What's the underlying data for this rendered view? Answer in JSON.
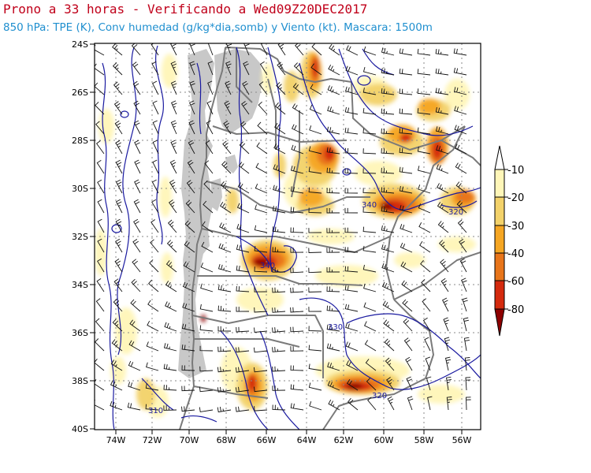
{
  "header": {
    "title": "Prono a 33 horas - Verificando a Wed09Z20DEC2017",
    "subtitle": "850 hPa: TPE (K), Conv humedad (g/kg*dia,somb) y Viento (kt). Mascara: 1500m"
  },
  "axes": {
    "lat_labels": [
      "24S",
      "26S",
      "28S",
      "30S",
      "32S",
      "34S",
      "36S",
      "38S",
      "40S"
    ],
    "lon_labels": [
      "74W",
      "72W",
      "70W",
      "68W",
      "66W",
      "64W",
      "62W",
      "60W",
      "58W",
      "56W"
    ],
    "lat_range": [
      -40,
      -24
    ],
    "lon_range": [
      -75,
      -55
    ]
  },
  "colorbar": {
    "labels": [
      "-10",
      "-20",
      "-30",
      "-40",
      "-60",
      "-80"
    ],
    "colors": [
      "#fff6b8",
      "#f3d26a",
      "#f5a623",
      "#e8751a",
      "#d42a0e",
      "#8e0000"
    ]
  },
  "isotherm_labels": [
    "340",
    "320",
    "330",
    "340",
    "320",
    "310"
  ],
  "colors": {
    "mask": "#c8c8c8",
    "borders": "#7a7a7a",
    "theta_e": "#1a1aa0",
    "grid": "#8a8a8a",
    "wind": "#111111"
  }
}
